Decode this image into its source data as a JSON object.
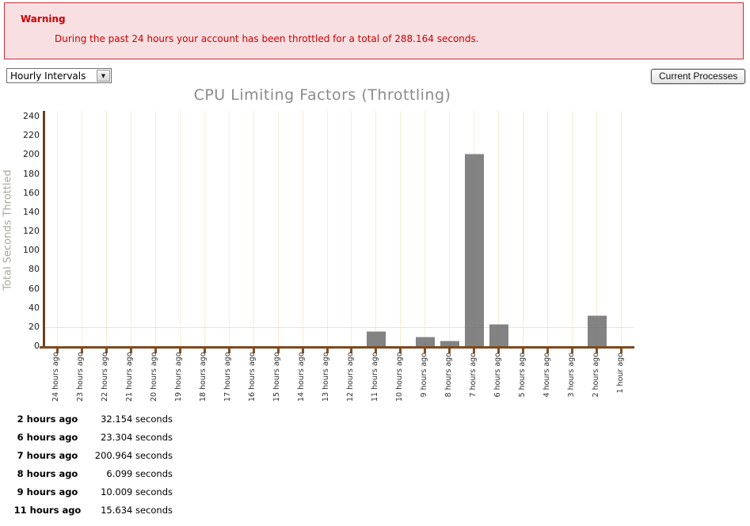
{
  "warning": {
    "title": "Warning",
    "message": "During the past 24 hours your account has been throttled for a total of 288.164 seconds."
  },
  "toolbar": {
    "interval_select": {
      "value": "Hourly Intervals"
    },
    "current_processes_label": "Current Processes"
  },
  "icons": {
    "dropdown_arrow": "▼"
  },
  "colors": {
    "warning_bg": "#f8dfe2",
    "warning_border": "#c52f3a",
    "warning_text": "#cc0000",
    "bar": "#686868",
    "axis_brown": "#7c4a1e",
    "grid_cream": "#f9ecd2",
    "title_gray": "#8b8b8b",
    "ylabel_gray": "#a3aa9f"
  },
  "chart_data": {
    "type": "bar",
    "title": "CPU Limiting Factors (Throttling)",
    "xlabel": "",
    "ylabel": "Total Seconds Throttled",
    "ylim": [
      0,
      240
    ],
    "ytick_step": 20,
    "grid": "vertical gridline per category; single horizontal gridline at y=20",
    "hlines": [
      20
    ],
    "legend": "none",
    "categories": [
      "24 hours ago",
      "23 hours ago",
      "22 hours ago",
      "21 hours ago",
      "20 hours ago",
      "19 hours ago",
      "18 hours ago",
      "17 hours ago",
      "16 hours ago",
      "15 hours ago",
      "14 hours ago",
      "13 hours ago",
      "12 hours ago",
      "11 hours ago",
      "10 hours ago",
      "9 hours ago",
      "8 hours ago",
      "7 hours ago",
      "6 hours ago",
      "5 hours ago",
      "4 hours ago",
      "3 hours ago",
      "2 hours ago",
      "1 hour ago"
    ],
    "values": [
      0,
      0,
      0,
      0,
      0,
      0,
      0,
      0,
      0,
      0,
      0,
      0,
      0,
      15.634,
      0,
      10.009,
      6.099,
      200.964,
      23.304,
      0,
      0,
      0,
      32.154,
      0
    ]
  },
  "summary_table": {
    "rows": [
      {
        "label": "2 hours ago",
        "value": "32.154 seconds"
      },
      {
        "label": "6 hours ago",
        "value": "23.304 seconds"
      },
      {
        "label": "7 hours ago",
        "value": "200.964 seconds"
      },
      {
        "label": "8 hours ago",
        "value": "6.099 seconds"
      },
      {
        "label": "9 hours ago",
        "value": "10.009 seconds"
      },
      {
        "label": "11 hours ago",
        "value": "15.634 seconds"
      }
    ]
  }
}
